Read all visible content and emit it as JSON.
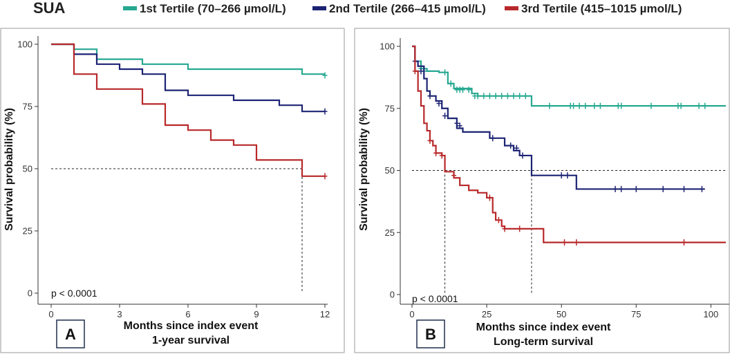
{
  "legend": {
    "title": "SUA",
    "entries": [
      {
        "label": "1st Tertile (70–266 µmol/L)",
        "color": "#26a891"
      },
      {
        "label": "2nd Tertile (266–415 µmol/L)",
        "color": "#1c2373"
      },
      {
        "label": "3rd Tertile (415–1015 µmol/L)",
        "color": "#b8282a"
      }
    ]
  },
  "chart_data": [
    {
      "type": "line",
      "subtype": "kaplan-meier",
      "panel_label": "A",
      "xlabel_line1": "Months since index event",
      "xlabel_line2": "1-year survival",
      "ylabel": "Survival probability  (%)",
      "xlim": [
        0,
        12
      ],
      "ylim": [
        0,
        100
      ],
      "xticks": [
        0,
        3,
        6,
        9,
        12
      ],
      "yticks": [
        0,
        25,
        50,
        75,
        100
      ],
      "xtick_labels": [
        "0",
        "3",
        "6",
        "9",
        "12"
      ],
      "ytick_labels": [
        "0",
        "25",
        "50",
        "75",
        "100"
      ],
      "p_value": "p < 0.0001",
      "median_reference": {
        "y": 50,
        "x_medians": [
          11
        ]
      },
      "series": [
        {
          "name": "1st Tertile",
          "color": "#26a891",
          "steps": [
            [
              0,
              100
            ],
            [
              1,
              98
            ],
            [
              2,
              94
            ],
            [
              4,
              92
            ],
            [
              6,
              90
            ],
            [
              11,
              88
            ],
            [
              12,
              88
            ]
          ],
          "censor": [
            [
              12,
              87.5
            ]
          ]
        },
        {
          "name": "2nd Tertile",
          "color": "#1c2373",
          "steps": [
            [
              0,
              100
            ],
            [
              1,
              96
            ],
            [
              2,
              92
            ],
            [
              3,
              90
            ],
            [
              4,
              88
            ],
            [
              5,
              81.5
            ],
            [
              6,
              79.5
            ],
            [
              8,
              77.5
            ],
            [
              10,
              75.5
            ],
            [
              11,
              73
            ],
            [
              12,
              73
            ]
          ],
          "censor": [
            [
              12,
              73
            ]
          ]
        },
        {
          "name": "3rd Tertile",
          "color": "#b8282a",
          "steps": [
            [
              0,
              100
            ],
            [
              1,
              88
            ],
            [
              2,
              82
            ],
            [
              4,
              76
            ],
            [
              5,
              67.5
            ],
            [
              6,
              65.5
            ],
            [
              7,
              61.5
            ],
            [
              8,
              59.5
            ],
            [
              9,
              53.5
            ],
            [
              11,
              47
            ],
            [
              12,
              47
            ]
          ],
          "censor": [
            [
              12,
              47
            ]
          ]
        }
      ]
    },
    {
      "type": "line",
      "subtype": "kaplan-meier",
      "panel_label": "B",
      "xlabel_line1": "Months since index event",
      "xlabel_line2": "Long-term survival",
      "ylabel": "Survival probability  (%)",
      "xlim": [
        0,
        105
      ],
      "ylim": [
        0,
        100
      ],
      "xticks": [
        0,
        25,
        50,
        75,
        100
      ],
      "yticks": [
        0,
        25,
        50,
        75,
        100
      ],
      "xtick_labels": [
        "0",
        "25",
        "50",
        "75",
        "100"
      ],
      "ytick_labels": [
        "0",
        "25",
        "50",
        "75",
        "100"
      ],
      "p_value": "p < 0.0001",
      "median_reference": {
        "y": 50,
        "x_medians": [
          11,
          40
        ]
      },
      "series": [
        {
          "name": "1st Tertile",
          "color": "#26a891",
          "steps": [
            [
              0,
              100
            ],
            [
              1,
              94
            ],
            [
              3,
              91
            ],
            [
              5,
              90
            ],
            [
              9,
              89.5
            ],
            [
              12,
              85
            ],
            [
              14,
              83
            ],
            [
              20,
              81
            ],
            [
              22,
              80
            ],
            [
              40,
              76
            ],
            [
              105,
              76
            ]
          ],
          "censor": [
            [
              3,
              91
            ],
            [
              4,
              90
            ],
            [
              11,
              89.5
            ],
            [
              13,
              85
            ],
            [
              15,
              82.5
            ],
            [
              16,
              82.5
            ],
            [
              17,
              82.5
            ],
            [
              19,
              82.5
            ],
            [
              21,
              80
            ],
            [
              22,
              80
            ],
            [
              24,
              80
            ],
            [
              26,
              80
            ],
            [
              28,
              80
            ],
            [
              30,
              80
            ],
            [
              32,
              80
            ],
            [
              34,
              80
            ],
            [
              36,
              80
            ],
            [
              38,
              80
            ],
            [
              46,
              76
            ],
            [
              53,
              76
            ],
            [
              54,
              76
            ],
            [
              56,
              76
            ],
            [
              58,
              76
            ],
            [
              61,
              76
            ],
            [
              63,
              76
            ],
            [
              69,
              76
            ],
            [
              70,
              76
            ],
            [
              80,
              76
            ],
            [
              89,
              76
            ],
            [
              90,
              76
            ],
            [
              96,
              76
            ],
            [
              98,
              76
            ]
          ]
        },
        {
          "name": "2nd Tertile",
          "color": "#1c2373",
          "steps": [
            [
              0,
              100
            ],
            [
              1,
              94
            ],
            [
              2,
              92
            ],
            [
              4,
              87
            ],
            [
              5,
              82
            ],
            [
              6,
              80
            ],
            [
              8,
              78
            ],
            [
              10,
              75
            ],
            [
              12,
              71
            ],
            [
              15,
              67
            ],
            [
              17,
              65.5
            ],
            [
              26,
              63
            ],
            [
              31,
              60
            ],
            [
              34,
              58
            ],
            [
              36,
              56
            ],
            [
              40,
              48
            ],
            [
              55,
              42.5
            ],
            [
              98,
              42.5
            ]
          ],
          "censor": [
            [
              1,
              94
            ],
            [
              3,
              90
            ],
            [
              6,
              80
            ],
            [
              9,
              77
            ],
            [
              11,
              72
            ],
            [
              15,
              69
            ],
            [
              16,
              68
            ],
            [
              27,
              63
            ],
            [
              33,
              60
            ],
            [
              35,
              59
            ],
            [
              37,
              56
            ],
            [
              50,
              48
            ],
            [
              52,
              48
            ],
            [
              68,
              42.5
            ],
            [
              70,
              42.5
            ],
            [
              75,
              42.5
            ],
            [
              84,
              42.5
            ],
            [
              91,
              42.5
            ],
            [
              97,
              42.5
            ]
          ]
        },
        {
          "name": "3rd Tertile",
          "color": "#b8282a",
          "steps": [
            [
              0,
              100
            ],
            [
              1,
              90
            ],
            [
              2,
              82
            ],
            [
              3,
              76
            ],
            [
              4,
              69
            ],
            [
              5,
              66
            ],
            [
              6,
              62
            ],
            [
              7,
              60
            ],
            [
              8,
              57
            ],
            [
              10,
              56
            ],
            [
              11,
              49.5
            ],
            [
              14,
              47
            ],
            [
              16,
              44
            ],
            [
              19,
              42
            ],
            [
              22,
              41
            ],
            [
              25,
              39
            ],
            [
              27,
              33
            ],
            [
              28,
              30
            ],
            [
              30,
              27.5
            ],
            [
              31,
              26.5
            ],
            [
              44,
              21
            ],
            [
              105,
              21
            ]
          ],
          "censor": [
            [
              1,
              90
            ],
            [
              6,
              62
            ],
            [
              8,
              57
            ],
            [
              10,
              56
            ],
            [
              14,
              48
            ],
            [
              26,
              39
            ],
            [
              29,
              30
            ],
            [
              31,
              26.5
            ],
            [
              36,
              26.5
            ],
            [
              51,
              21
            ],
            [
              55,
              21
            ],
            [
              91,
              21
            ]
          ]
        }
      ]
    }
  ]
}
